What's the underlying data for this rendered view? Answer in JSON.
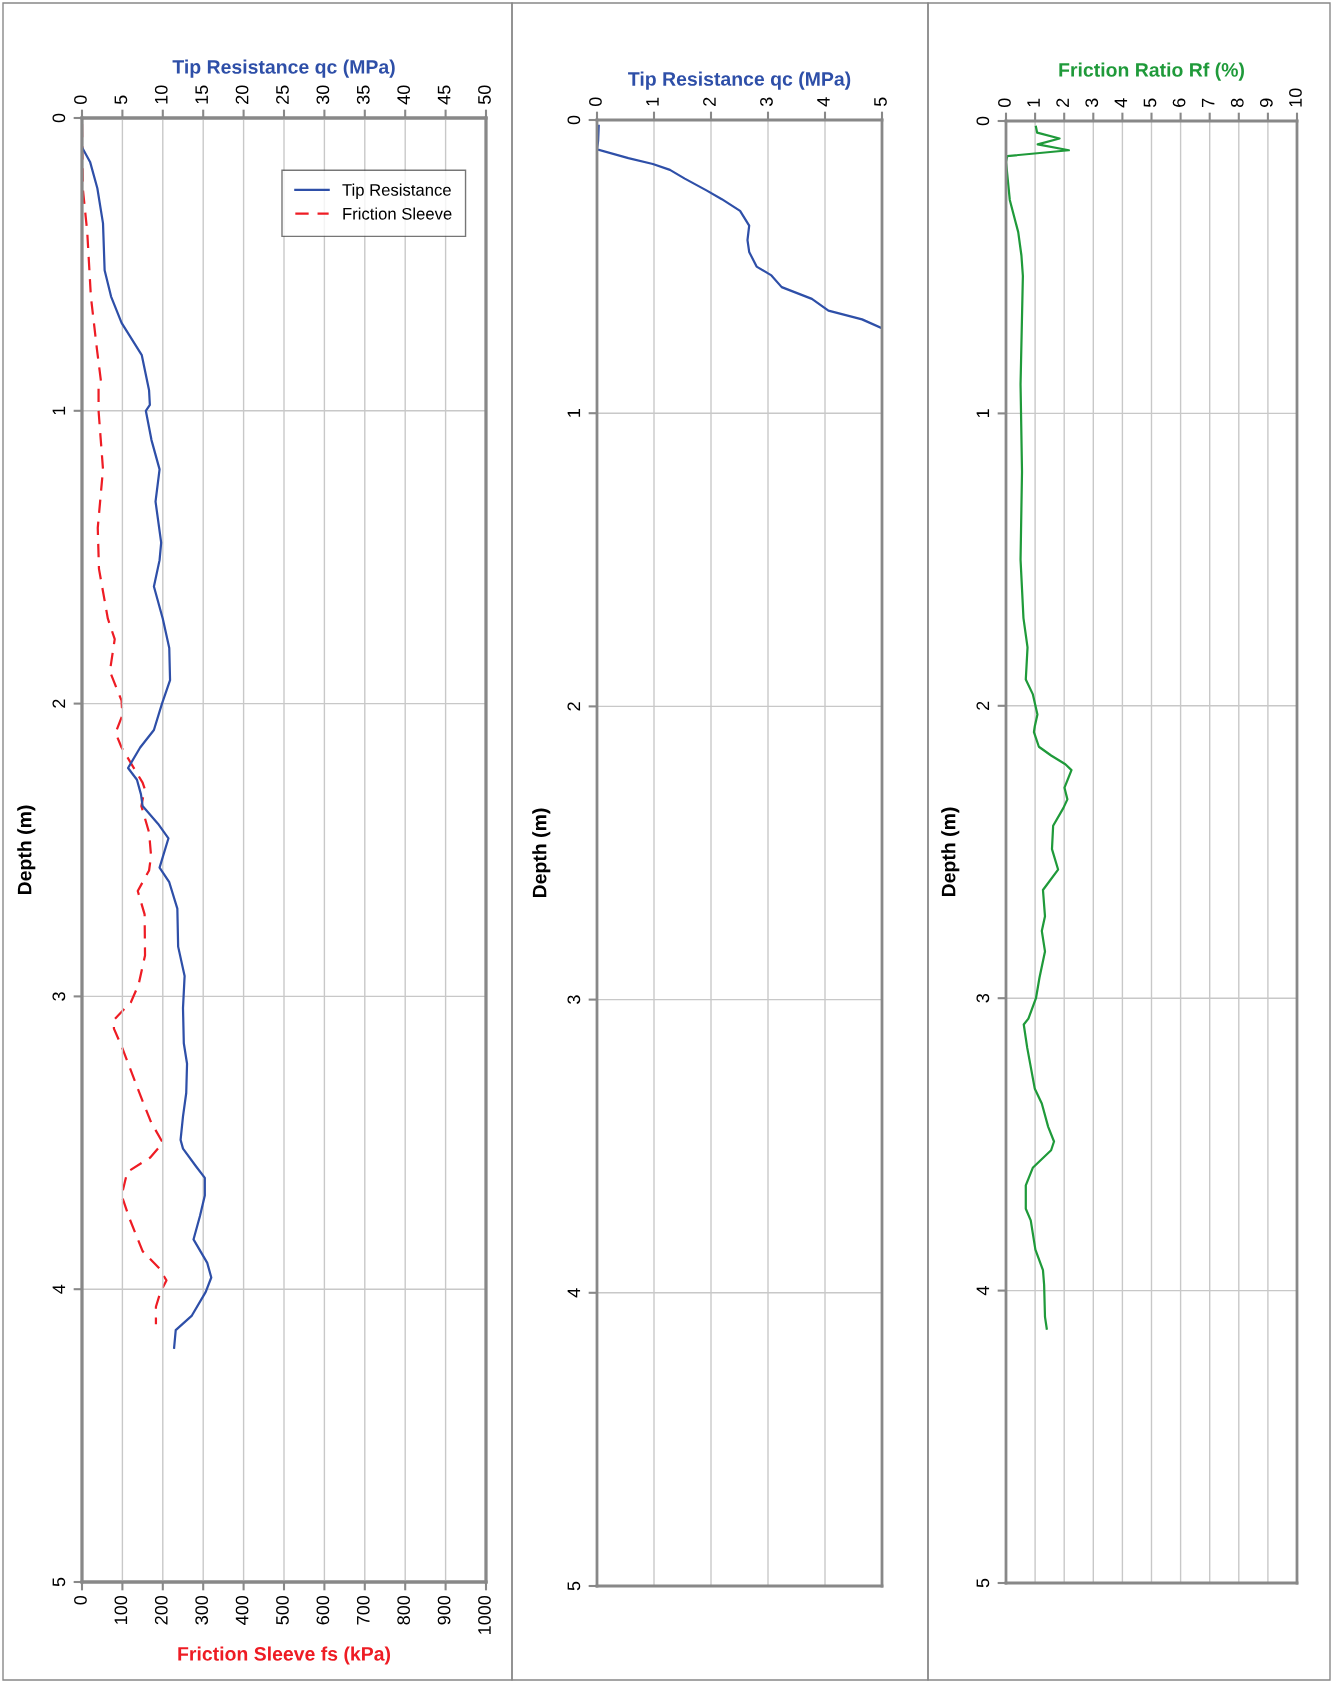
{
  "chart_data": [
    {
      "type": "line",
      "ylabel": "Depth (m)",
      "xlabel": "Friction Sleeve fs (kPa)",
      "x2label": "Tip Resistance qc (MPa)",
      "xlim": [
        0,
        1000
      ],
      "xticks": [
        0,
        100,
        200,
        300,
        400,
        500,
        600,
        700,
        800,
        900,
        1000
      ],
      "x2lim": [
        0,
        50
      ],
      "x2ticks": [
        0,
        5,
        10,
        15,
        20,
        25,
        30,
        35,
        40,
        45,
        50
      ],
      "ylim": [
        5,
        0
      ],
      "yticks": [
        0,
        1,
        2,
        3,
        4,
        5
      ],
      "grid": true,
      "legend": "top right",
      "series": [
        {
          "name": "Tip Resistance",
          "color": "#2e4fa8",
          "axis": "x2",
          "line_style": "solid",
          "x": [
            0,
            1.0,
            1.9,
            2.6,
            2.8,
            3.6,
            4.9,
            7.4,
            8.3,
            8.4,
            7.9,
            8.6,
            9.6,
            9.1,
            9.8,
            9.6,
            8.9,
            10.0,
            10.8,
            10.9,
            9.9,
            8.9,
            7.2,
            5.7,
            6.8,
            7.3,
            7.5,
            9.4,
            10.7,
            9.6,
            10.8,
            11.8,
            11.9,
            12.7,
            12.5,
            12.6,
            13.0,
            12.9,
            12.5,
            12.2,
            12.5,
            14.1,
            15.2,
            15.2,
            14.6,
            13.8,
            15.5,
            16.0,
            15.3,
            13.6,
            11.6,
            11.4
          ],
          "values": [
            0.1,
            0.15,
            0.24,
            0.36,
            0.52,
            0.61,
            0.7,
            0.81,
            0.93,
            0.98,
            1.0,
            1.1,
            1.2,
            1.31,
            1.45,
            1.51,
            1.6,
            1.71,
            1.81,
            1.92,
            2.0,
            2.09,
            2.15,
            2.22,
            2.26,
            2.31,
            2.35,
            2.41,
            2.46,
            2.56,
            2.61,
            2.7,
            2.83,
            2.93,
            3.04,
            3.16,
            3.23,
            3.33,
            3.41,
            3.49,
            3.52,
            3.58,
            3.62,
            3.68,
            3.75,
            3.83,
            3.91,
            3.96,
            4.01,
            4.09,
            4.14,
            4.2
          ]
        },
        {
          "name": "Friction Sleeve",
          "color": "#ee1c24",
          "line_style": "dashed",
          "x": [
            0,
            2,
            13,
            22,
            37,
            47,
            41,
            41,
            52,
            39,
            42,
            64,
            81,
            69,
            98,
            100,
            83,
            98,
            150,
            155,
            147,
            166,
            171,
            166,
            138,
            155,
            156,
            140,
            121,
            79,
            79,
            98,
            145,
            171,
            200,
            169,
            112,
            98,
            118,
            150,
            192,
            209,
            194,
            183,
            183
          ],
          "values": [
            0.02,
            0.24,
            0.39,
            0.61,
            0.79,
            0.9,
            0.91,
            1.0,
            1.2,
            1.4,
            1.54,
            1.71,
            1.78,
            1.89,
            1.99,
            2.04,
            2.1,
            2.15,
            2.27,
            2.29,
            2.35,
            2.44,
            2.52,
            2.57,
            2.64,
            2.72,
            2.86,
            2.96,
            3.02,
            3.08,
            3.11,
            3.17,
            3.34,
            3.43,
            3.5,
            3.55,
            3.6,
            3.68,
            3.76,
            3.87,
            3.93,
            3.97,
            4.01,
            4.06,
            4.12
          ]
        }
      ]
    },
    {
      "type": "line",
      "ylabel": "Depth (m)",
      "xlabel": "Tip Resistance qc (MPa)",
      "xlim": [
        0,
        5
      ],
      "xticks": [
        0,
        1,
        2,
        3,
        4,
        5
      ],
      "ylim": [
        5,
        0
      ],
      "yticks": [
        0,
        1,
        2,
        3,
        4,
        5
      ],
      "grid": true,
      "series": [
        {
          "color": "#2e4fa8",
          "line_style": "solid",
          "x": [
            0.03,
            0.02,
            0,
            0.55,
            0.98,
            1.28,
            1.54,
            1.92,
            2.19,
            2.51,
            2.67,
            2.64,
            2.67,
            2.8,
            3.06,
            3.24,
            3.77,
            4.06,
            4.65,
            5.0
          ],
          "values": [
            0.02,
            0.07,
            0.1,
            0.13,
            0.15,
            0.17,
            0.2,
            0.24,
            0.27,
            0.31,
            0.36,
            0.41,
            0.45,
            0.5,
            0.53,
            0.57,
            0.61,
            0.65,
            0.68,
            0.71
          ]
        }
      ]
    },
    {
      "type": "line",
      "ylabel": "Depth (m)",
      "xlabel": "Friction Ratio Rf (%)",
      "xlim": [
        0,
        10
      ],
      "xticks": [
        0,
        1,
        2,
        3,
        4,
        5,
        6,
        7,
        8,
        9,
        10
      ],
      "ylim": [
        5,
        0
      ],
      "yticks": [
        0,
        1,
        2,
        3,
        4,
        5
      ],
      "grid": true,
      "series": [
        {
          "color": "#1f9a3a",
          "line_style": "solid",
          "x": [
            1.03,
            1.07,
            1.84,
            1.09,
            2.16,
            0.04,
            0,
            0.13,
            0.42,
            0.53,
            0.58,
            0.5,
            0.55,
            0.5,
            0.6,
            0.74,
            0.68,
            0.92,
            1.08,
            0.99,
            0.96,
            1.13,
            1.55,
            2.04,
            2.25,
            2.01,
            2.11,
            1.97,
            1.62,
            1.58,
            1.79,
            1.27,
            1.34,
            1.23,
            1.34,
            1.15,
            1.03,
            0.77,
            0.61,
            0.73,
            0.99,
            1.23,
            1.45,
            1.65,
            1.55,
            0.92,
            0.68,
            0.68,
            0.85,
            1.01,
            1.27,
            1.31,
            1.34,
            1.4
          ],
          "values": [
            0.02,
            0.04,
            0.06,
            0.08,
            0.1,
            0.12,
            0.14,
            0.27,
            0.38,
            0.46,
            0.53,
            0.9,
            1.2,
            1.5,
            1.7,
            1.8,
            1.91,
            1.96,
            2.03,
            2.07,
            2.09,
            2.14,
            2.17,
            2.2,
            2.22,
            2.28,
            2.32,
            2.35,
            2.41,
            2.49,
            2.56,
            2.63,
            2.72,
            2.77,
            2.84,
            2.93,
            3.0,
            3.07,
            3.09,
            3.17,
            3.31,
            3.36,
            3.44,
            3.49,
            3.52,
            3.58,
            3.64,
            3.72,
            3.76,
            3.86,
            3.93,
            3.98,
            4.09,
            4.13
          ]
        }
      ]
    }
  ]
}
